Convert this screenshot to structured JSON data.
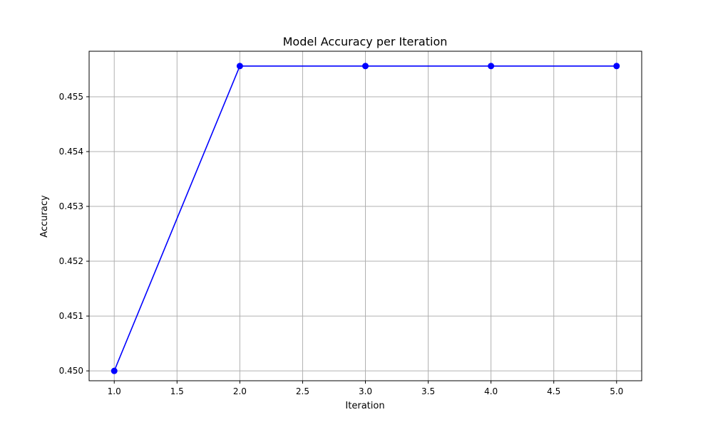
{
  "chart_data": {
    "type": "line",
    "title": "Model Accuracy per Iteration",
    "xlabel": "Iteration",
    "ylabel": "Accuracy",
    "x": [
      1,
      2,
      3,
      4,
      5
    ],
    "series": [
      {
        "values": [
          0.45,
          0.45556,
          0.45556,
          0.45556,
          0.45556
        ],
        "color": "#0000ff",
        "marker": "circle"
      }
    ],
    "xlim": [
      0.8,
      5.2
    ],
    "ylim": [
      0.44982,
      0.45583
    ],
    "xticks": [
      1.0,
      1.5,
      2.0,
      2.5,
      3.0,
      3.5,
      4.0,
      4.5,
      5.0
    ],
    "xtick_labels": [
      "1.0",
      "1.5",
      "2.0",
      "2.5",
      "3.0",
      "3.5",
      "4.0",
      "4.5",
      "5.0"
    ],
    "yticks": [
      0.45,
      0.451,
      0.452,
      0.453,
      0.454,
      0.455
    ],
    "ytick_labels": [
      "0.450",
      "0.451",
      "0.452",
      "0.453",
      "0.454",
      "0.455"
    ],
    "grid": true,
    "grid_color": "#b0b0b0"
  }
}
